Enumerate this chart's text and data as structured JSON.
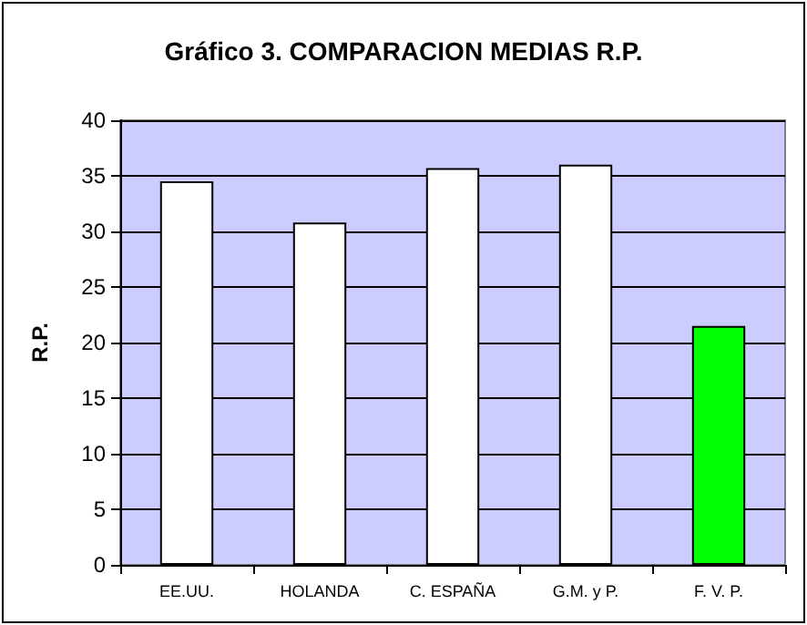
{
  "chart_data": {
    "type": "bar",
    "title": "Gráfico 3. COMPARACION MEDIAS R.P.",
    "ylabel": "R.P.",
    "categories": [
      "EE.UU.",
      "HOLANDA",
      "C. ESPAÑA",
      "G.M. y P.",
      "F. V. P."
    ],
    "values": [
      34.5,
      30.8,
      35.7,
      36.0,
      21.5
    ],
    "colors": [
      "#ffffff",
      "#ffffff",
      "#ffffff",
      "#ffffff",
      "#00ff00"
    ],
    "ylim": [
      0,
      40
    ],
    "yticks": [
      0,
      5,
      10,
      15,
      20,
      25,
      30,
      35,
      40
    ],
    "grid": "y"
  }
}
